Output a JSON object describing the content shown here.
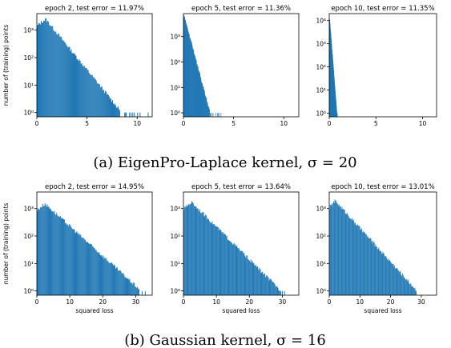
{
  "bar_color": "#1f77b4",
  "figure_captions": [
    "(a) EigenPro-Laplace kernel, σ = 20",
    "(b) Gaussian kernel, σ = 16"
  ],
  "chart_data": [
    {
      "type": "bar",
      "variant": "histogram",
      "title": "epoch 2, test error = 11.97%",
      "xlabel": "",
      "ylabel": "number of (training) points",
      "xlim": [
        0,
        11.5
      ],
      "xticks": [
        0,
        5,
        10
      ],
      "yscale": "log",
      "ylim": [
        0.7,
        4000
      ],
      "yticks": [
        1,
        10,
        100,
        1000
      ],
      "ytick_labels": [
        "10⁰",
        "10¹",
        "10²",
        "10³"
      ],
      "dist": {
        "xmin": 0,
        "xmax": 11.3,
        "peak_x": 0.9,
        "peak_value": 2500,
        "tail_x": 8.3,
        "tail_value": 1.2
      },
      "grid": false
    },
    {
      "type": "bar",
      "variant": "histogram",
      "title": "epoch 5, test error = 11.36%",
      "xlabel": "",
      "ylabel": "",
      "xlim": [
        0,
        11.5
      ],
      "xticks": [
        0,
        5,
        10
      ],
      "yscale": "log",
      "ylim": [
        0.7,
        8000
      ],
      "yticks": [
        1,
        10,
        100,
        1000
      ],
      "ytick_labels": [
        "10⁰",
        "10¹",
        "10²",
        "10³"
      ],
      "dist": {
        "xmin": 0,
        "xmax": 3.8,
        "peak_x": 0.05,
        "peak_value": 7000,
        "tail_x": 2.6,
        "tail_value": 1.2
      },
      "grid": false
    },
    {
      "type": "bar",
      "variant": "histogram",
      "title": "epoch 10, test error = 11.35%",
      "xlabel": "",
      "ylabel": "",
      "xlim": [
        0,
        11.5
      ],
      "xticks": [
        0,
        5,
        10
      ],
      "yscale": "log",
      "ylim": [
        0.7,
        20000
      ],
      "yticks": [
        1,
        10,
        100,
        1000,
        10000
      ],
      "ytick_labels": [
        "10⁰",
        "10¹",
        "10²",
        "10³",
        "10⁴"
      ],
      "dist": {
        "xmin": 0,
        "xmax": 0.9,
        "peak_x": 0.02,
        "peak_value": 12000,
        "tail_x": 0.8,
        "tail_value": 1
      },
      "grid": false
    },
    {
      "type": "bar",
      "variant": "histogram",
      "title": "epoch 2, test error = 14.95%",
      "xlabel": "squared loss",
      "ylabel": "number of (training) points",
      "xlim": [
        0,
        35
      ],
      "xticks": [
        0,
        10,
        20,
        30
      ],
      "yscale": "log",
      "ylim": [
        0.7,
        4000
      ],
      "yticks": [
        1,
        10,
        100,
        1000
      ],
      "ytick_labels": [
        "10⁰",
        "10¹",
        "10²",
        "10³"
      ],
      "dist": {
        "xmin": 0,
        "xmax": 33,
        "peak_x": 2.5,
        "peak_value": 1500,
        "tail_x": 31,
        "tail_value": 1.2
      },
      "grid": false
    },
    {
      "type": "bar",
      "variant": "histogram",
      "title": "epoch 5, test error = 13.64%",
      "xlabel": "squared loss",
      "ylabel": "",
      "xlim": [
        0,
        35
      ],
      "xticks": [
        0,
        10,
        20,
        30
      ],
      "yscale": "log",
      "ylim": [
        0.7,
        4000
      ],
      "yticks": [
        1,
        10,
        100,
        1000
      ],
      "ytick_labels": [
        "10⁰",
        "10¹",
        "10²",
        "10³"
      ],
      "dist": {
        "xmin": 0,
        "xmax": 31,
        "peak_x": 2.5,
        "peak_value": 1700,
        "tail_x": 29,
        "tail_value": 1.2
      },
      "grid": false
    },
    {
      "type": "bar",
      "variant": "histogram",
      "title": "epoch 10, test error = 13.01%",
      "xlabel": "squared loss",
      "ylabel": "",
      "xlim": [
        0,
        35
      ],
      "xticks": [
        0,
        10,
        20,
        30
      ],
      "yscale": "log",
      "ylim": [
        0.7,
        4000
      ],
      "yticks": [
        1,
        10,
        100,
        1000
      ],
      "ytick_labels": [
        "10⁰",
        "10¹",
        "10²",
        "10³"
      ],
      "dist": {
        "xmin": 0,
        "xmax": 30,
        "peak_x": 2.0,
        "peak_value": 1900,
        "tail_x": 28,
        "tail_value": 1.2
      },
      "grid": false
    }
  ]
}
